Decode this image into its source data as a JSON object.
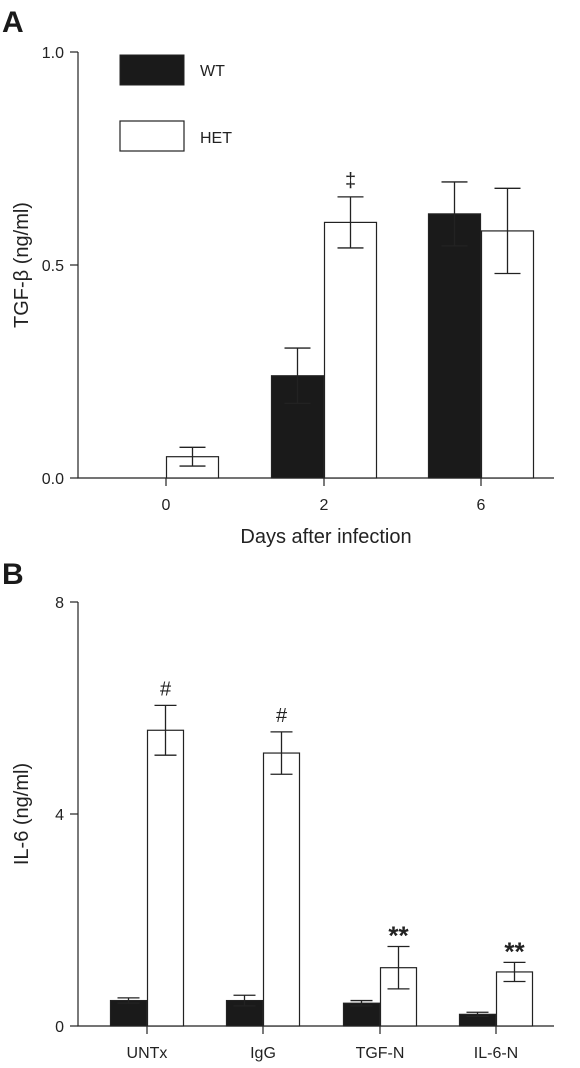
{
  "colors": {
    "wt": "#1a1a1a",
    "het": "#ffffff",
    "stroke": "#222222"
  },
  "chart_data": [
    {
      "panel": "A",
      "type": "bar",
      "title": "",
      "xlabel": "Days after infection",
      "ylabel": "TGF-β (ng/ml)",
      "ylim": [
        0,
        1.0
      ],
      "yticks": [
        0.0,
        0.5,
        1.0
      ],
      "ytick_labels": [
        "0.0",
        "0.5",
        "1.0"
      ],
      "categories": [
        "0",
        "2",
        "6"
      ],
      "legend_position": "top-left",
      "series": [
        {
          "name": "WT",
          "key": "wt",
          "values": [
            0.0,
            0.24,
            0.62
          ],
          "errors": [
            0.0,
            0.065,
            0.075
          ]
        },
        {
          "name": "HET",
          "key": "het",
          "values": [
            0.05,
            0.6,
            0.58
          ],
          "errors": [
            0.022,
            0.06,
            0.1
          ]
        }
      ],
      "annotations": [
        {
          "text": "‡",
          "category_index": 1,
          "series": "HET"
        }
      ]
    },
    {
      "panel": "B",
      "type": "bar",
      "title": "",
      "xlabel": "",
      "ylabel": "IL-6 (ng/ml)",
      "ylim": [
        0,
        8
      ],
      "yticks": [
        0,
        4,
        8
      ],
      "ytick_labels": [
        "0",
        "4",
        "8"
      ],
      "categories": [
        "UNTx",
        "IgG",
        "TGF-N",
        "IL-6-N"
      ],
      "series": [
        {
          "name": "",
          "key": "wt",
          "values": [
            0.48,
            0.48,
            0.43,
            0.22
          ],
          "errors": [
            0.05,
            0.1,
            0.05,
            0.04
          ]
        },
        {
          "name": "",
          "key": "het",
          "values": [
            5.58,
            5.15,
            1.1,
            1.02
          ],
          "errors": [
            0.47,
            0.4,
            0.4,
            0.18
          ]
        }
      ],
      "annotations": [
        {
          "text": "#",
          "category_index": 0,
          "series": "HET"
        },
        {
          "text": "#",
          "category_index": 1,
          "series": "HET"
        },
        {
          "text": "**",
          "category_index": 2,
          "series": "HET"
        },
        {
          "text": "**",
          "category_index": 3,
          "series": "HET"
        }
      ]
    }
  ]
}
